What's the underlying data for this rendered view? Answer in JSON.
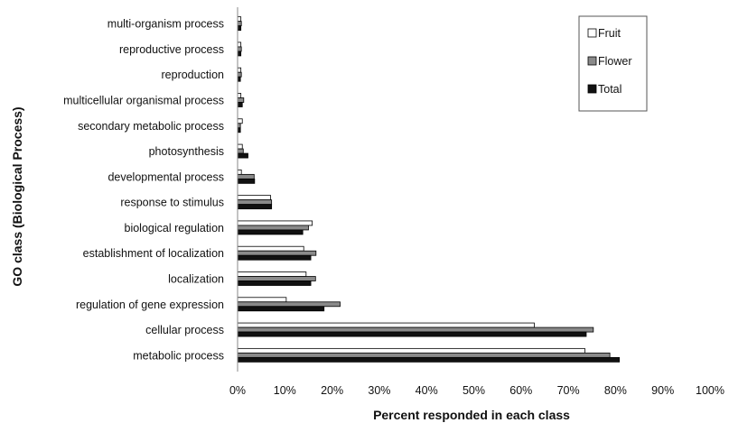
{
  "chart_data": {
    "type": "bar",
    "orientation": "horizontal",
    "title": "",
    "xlabel": "Percent responded in each class",
    "ylabel": "GO class (Biological Process)",
    "xlim": [
      0,
      100
    ],
    "xticks": [
      "0%",
      "10%",
      "20%",
      "30%",
      "40%",
      "50%",
      "60%",
      "70%",
      "80%",
      "90%",
      "100%"
    ],
    "categories": [
      "metabolic process",
      "cellular process",
      "regulation of gene expression",
      "localization",
      "establishment of localization",
      "biological regulation",
      "response to stimulus",
      "developmental process",
      "photosynthesis",
      "secondary metabolic process",
      "multicellular organismal process",
      "reproduction",
      "reproductive process",
      "multi-organism process"
    ],
    "series": [
      {
        "name": "Fruit",
        "color": "#ffffff",
        "values": [
          73.5,
          62.8,
          10.3,
          14.5,
          14.0,
          15.8,
          7.0,
          0.8,
          1.0,
          1.0,
          0.7,
          0.7,
          0.7,
          0.7
        ]
      },
      {
        "name": "Flower",
        "color": "#8a8a8a",
        "values": [
          78.8,
          75.3,
          21.7,
          16.5,
          16.6,
          15.0,
          7.2,
          3.5,
          1.2,
          0.6,
          1.3,
          0.8,
          0.8,
          0.8
        ]
      },
      {
        "name": "Total",
        "color": "#111111",
        "values": [
          80.8,
          73.8,
          18.3,
          15.5,
          15.5,
          13.8,
          7.2,
          3.6,
          2.2,
          0.6,
          1.0,
          0.6,
          0.7,
          0.7
        ]
      }
    ],
    "grid": false,
    "legend_position": "top-right"
  }
}
